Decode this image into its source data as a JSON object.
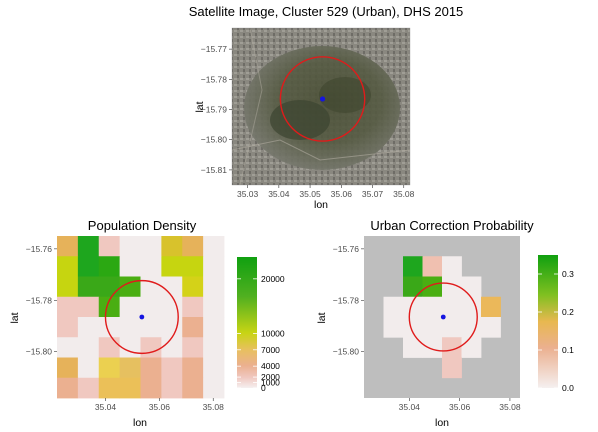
{
  "chart_data": [
    {
      "type": "map",
      "title": "Satellite Image, Cluster 529 (Urban), DHS 2015",
      "xlabel": "lon",
      "ylabel": "lat",
      "xlim": [
        35.025,
        35.082
      ],
      "ylim": [
        -15.815,
        -15.763
      ],
      "x_ticks": [
        "35.03",
        "35.04",
        "35.05",
        "35.06",
        "35.07",
        "35.08"
      ],
      "y_ticks": [
        "-15.77",
        "-15.78",
        "-15.79",
        "-15.80",
        "-15.81"
      ],
      "cluster_point": {
        "lon": 35.054,
        "lat": -15.7865,
        "color": "#1515e0"
      },
      "circle": {
        "lon": 35.054,
        "lat": -15.7865,
        "radius_deg": 0.0135,
        "color": "#e01b1b"
      }
    },
    {
      "type": "heatmap",
      "title": "Population Density",
      "xlabel": "lon",
      "ylabel": "lat",
      "xlim": [
        35.022,
        35.084
      ],
      "ylim": [
        -15.818,
        -15.755
      ],
      "x_ticks": [
        "35.04",
        "35.06",
        "35.08"
      ],
      "y_ticks": [
        "-15.76",
        "-15.78",
        "-15.80"
      ],
      "grid_rows": 8,
      "grid_cols": 8,
      "cell_colors": [
        [
          "#e6b25a",
          "#1ea61e",
          "#f0c8c0",
          "#f2ecec",
          "#f2ecec",
          "#d8c22c",
          "#e6b25a",
          "#f2ecec"
        ],
        [
          "#c6d510",
          "#1ea61e",
          "#2ba812",
          "#f2ecec",
          "#f2ecec",
          "#c6d510",
          "#c6d510",
          "#f2ecec"
        ],
        [
          "#c6d510",
          "#3aa818",
          "#3aa818",
          "#4aae12",
          "#f2ecec",
          "#f2ecec",
          "#d4d218",
          "#f2ecec"
        ],
        [
          "#f0c8c0",
          "#f0c8c0",
          "#4aae12",
          "#f2ecec",
          "#f2ecec",
          "#f2ecec",
          "#f0c8c0",
          "#f2ecec"
        ],
        [
          "#f0c8c0",
          "#f2ecec",
          "#f2ecec",
          "#f2ecec",
          "#f2ecec",
          "#f2ecec",
          "#ebb090",
          "#f2ecec"
        ],
        [
          "#f2ecec",
          "#f2ecec",
          "#f0c8c0",
          "#f2ecec",
          "#f0c8c0",
          "#f2ecec",
          "#f0c8c0",
          "#f2ecec"
        ],
        [
          "#e6b25a",
          "#f2ecec",
          "#ebd050",
          "#e6c060",
          "#ebb090",
          "#f0c8c0",
          "#ebb090",
          "#f2ecec"
        ],
        [
          "#ebb090",
          "#f0c8c0",
          "#ebc058",
          "#ebc058",
          "#ebb090",
          "#f0c8c0",
          "#ebb090",
          "#f2ecec"
        ]
      ],
      "legend_ticks": [
        "20000",
        "10000",
        "7000",
        "4000",
        "2000",
        "1000",
        "0"
      ],
      "legend_values": [
        20000,
        10000,
        7000,
        4000,
        2000,
        1000,
        0
      ],
      "legend_max": 24000,
      "cluster_point": {
        "lon": 35.0535,
        "lat": -15.7865,
        "color": "#1515e0"
      },
      "circle": {
        "lon": 35.0535,
        "lat": -15.7865,
        "radius_deg": 0.0135,
        "color": "#e01b1b"
      }
    },
    {
      "type": "heatmap",
      "title": "Urban Correction Probability",
      "xlabel": "lon",
      "ylabel": "lat",
      "xlim": [
        35.022,
        35.084
      ],
      "ylim": [
        -15.818,
        -15.755
      ],
      "x_ticks": [
        "35.04",
        "35.06",
        "35.08"
      ],
      "y_ticks": [
        "-15.76",
        "-15.78",
        "-15.80"
      ],
      "grid_rows": 8,
      "grid_cols": 8,
      "cell_colors": [
        [
          "",
          "",
          "",
          "",
          "",
          "",
          "",
          ""
        ],
        [
          "",
          "",
          "#1ea61e",
          "#f0c0b0",
          "#f2ecec",
          "",
          "",
          ""
        ],
        [
          "",
          "",
          "#3aa818",
          "#4aae12",
          "#f2ecec",
          "#f2ecec",
          "",
          ""
        ],
        [
          "",
          "#f2ecec",
          "#f2ecec",
          "#f2ecec",
          "#f2ecec",
          "#f2ecec",
          "#ebb85a",
          ""
        ],
        [
          "",
          "#f2ecec",
          "#f2ecec",
          "#f2ecec",
          "#f2ecec",
          "#f2ecec",
          "#f2ecec",
          ""
        ],
        [
          "",
          "",
          "#f2ecec",
          "#f2ecec",
          "#f0c8c0",
          "#f2ecec",
          "",
          ""
        ],
        [
          "",
          "",
          "",
          "",
          "#f0c8c0",
          "",
          "",
          ""
        ],
        [
          "",
          "",
          "",
          "",
          "",
          "",
          "",
          ""
        ]
      ],
      "background_color": "#bebebe",
      "legend_ticks": [
        "0.3",
        "0.2",
        "0.1",
        "0.0"
      ],
      "legend_values": [
        0.3,
        0.2,
        0.1,
        0.0
      ],
      "legend_max": 0.35,
      "cluster_point": {
        "lon": 35.0535,
        "lat": -15.7865,
        "color": "#1515e0"
      },
      "circle": {
        "lon": 35.0535,
        "lat": -15.7865,
        "radius_deg": 0.0135,
        "color": "#e01b1b"
      }
    }
  ]
}
